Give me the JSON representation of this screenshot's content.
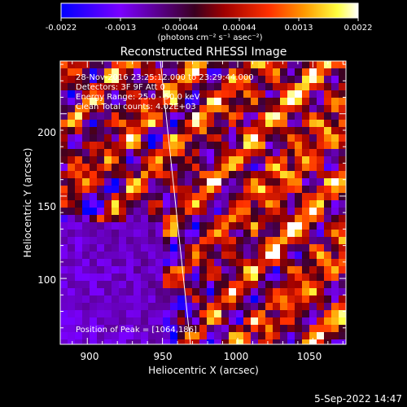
{
  "colorbar": {
    "tick_labels": [
      "-0.0022",
      "-0.0013",
      "-0.00044",
      "0.00044",
      "0.0013",
      "0.0022"
    ],
    "unit_label": "(photons cm⁻² s⁻¹ asec⁻²)",
    "range": [
      -0.0022,
      0.0022
    ],
    "colors": [
      "#0000ff",
      "#7a00ff",
      "#3a0020",
      "#a00000",
      "#ff3000",
      "#ff9a00",
      "#ffff40",
      "#ffffff"
    ]
  },
  "plot": {
    "title": "Reconstructed RHESSI Image",
    "annotations": [
      "28-Nov-2016 23:25:12.000 to 23:29:44.000",
      "Detectors: 3F 9F  Att 0",
      "Energy Range: 25.0 - 50.0 keV",
      "Clean   Total counts: 4.02E+03"
    ],
    "peak_label": "Position of Peak = [1064,186]",
    "xlabel": "Heliocentric X (arcsec)",
    "ylabel": "Heliocentric Y (arcsec)",
    "x_ticks": [
      "900",
      "950",
      "1000",
      "1050"
    ],
    "y_ticks": [
      "100",
      "150",
      "200"
    ]
  },
  "footer": {
    "timestamp": "5-Sep-2022 14:47"
  },
  "chart_data": {
    "type": "heatmap",
    "title": "Reconstructed RHESSI Image",
    "xlabel": "Heliocentric X (arcsec)",
    "ylabel": "Heliocentric Y (arcsec)",
    "xlim": [
      882,
      1072
    ],
    "ylim": [
      60,
      232
    ],
    "x_ticks": [
      900,
      950,
      1000,
      1050
    ],
    "y_ticks": [
      100,
      150,
      200
    ],
    "colorbar_range": [
      -0.0022,
      0.0022
    ],
    "peak_position": [
      1064,
      186
    ],
    "limb_line": [
      [
        942,
        232
      ],
      [
        968,
        60
      ]
    ]
  }
}
